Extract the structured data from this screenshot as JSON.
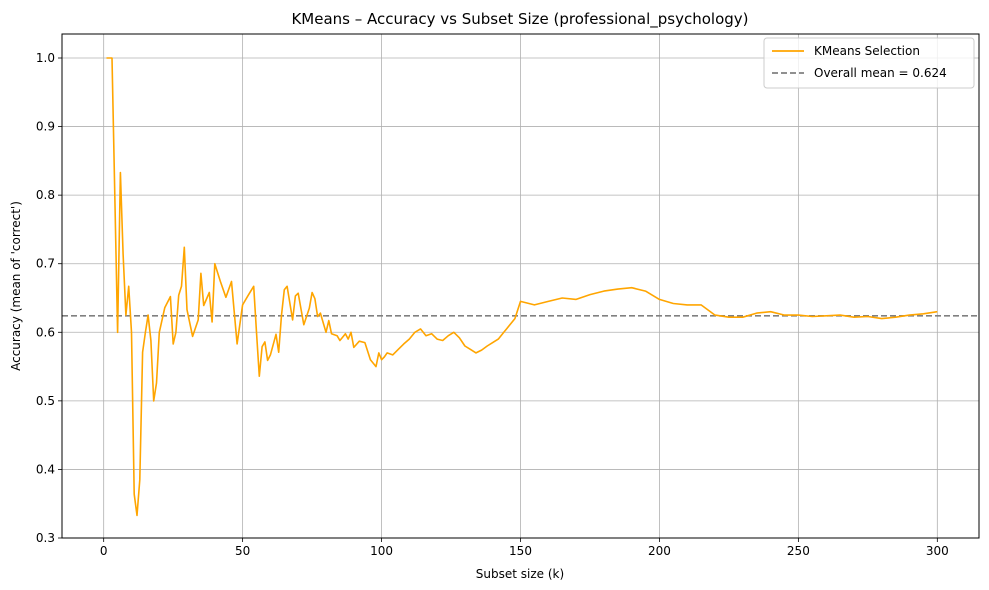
{
  "chart_data": {
    "type": "line",
    "title": "KMeans – Accuracy vs Subset Size (professional_psychology)",
    "xlabel": "Subset size (k)",
    "ylabel": "Accuracy (mean of 'correct')",
    "xlim": [
      -15,
      315
    ],
    "ylim": [
      0.3,
      1.035
    ],
    "xticks": [
      0,
      50,
      100,
      150,
      200,
      250,
      300
    ],
    "yticks": [
      0.3,
      0.4,
      0.5,
      0.6,
      0.7,
      0.8,
      0.9,
      1.0
    ],
    "xtick_labels": [
      "0",
      "50",
      "100",
      "150",
      "200",
      "250",
      "300"
    ],
    "ytick_labels": [
      "0.3",
      "0.4",
      "0.5",
      "0.6",
      "0.7",
      "0.8",
      "0.9",
      "1.0"
    ],
    "grid": true,
    "legend_position": "top-right",
    "series": [
      {
        "name": "KMeans Selection",
        "color": "#ffa500",
        "x": [
          1,
          3,
          5,
          6,
          7,
          8,
          9,
          10,
          11,
          12,
          13,
          14,
          15,
          16,
          17,
          18,
          19,
          20,
          22,
          24,
          25,
          26,
          27,
          28,
          29,
          30,
          32,
          34,
          35,
          36,
          38,
          39,
          40,
          42,
          44,
          46,
          48,
          50,
          52,
          54,
          55,
          56,
          57,
          58,
          59,
          60,
          62,
          63,
          64,
          65,
          66,
          68,
          69,
          70,
          71,
          72,
          74,
          75,
          76,
          77,
          78,
          80,
          81,
          82,
          84,
          85,
          86,
          87,
          88,
          89,
          90,
          92,
          94,
          96,
          98,
          99,
          100,
          101,
          102,
          104,
          106,
          108,
          110,
          112,
          114,
          116,
          118,
          120,
          122,
          124,
          126,
          128,
          130,
          132,
          134,
          136,
          138,
          140,
          142,
          144,
          145,
          146,
          148,
          150,
          155,
          160,
          165,
          170,
          175,
          180,
          185,
          190,
          195,
          200,
          205,
          210,
          215,
          220,
          225,
          230,
          235,
          240,
          245,
          250,
          255,
          260,
          265,
          270,
          275,
          280,
          285,
          290,
          295,
          300
        ],
        "y": [
          1.0,
          1.0,
          0.6,
          0.833,
          0.714,
          0.625,
          0.667,
          0.6,
          0.364,
          0.333,
          0.385,
          0.571,
          0.6,
          0.625,
          0.588,
          0.5,
          0.526,
          0.6,
          0.636,
          0.652,
          0.583,
          0.6,
          0.654,
          0.667,
          0.724,
          0.633,
          0.594,
          0.618,
          0.686,
          0.639,
          0.658,
          0.615,
          0.7,
          0.674,
          0.651,
          0.674,
          0.583,
          0.64,
          0.654,
          0.667,
          0.6,
          0.536,
          0.579,
          0.586,
          0.559,
          0.567,
          0.597,
          0.571,
          0.625,
          0.662,
          0.667,
          0.618,
          0.653,
          0.657,
          0.634,
          0.611,
          0.635,
          0.658,
          0.649,
          0.623,
          0.628,
          0.6,
          0.617,
          0.598,
          0.595,
          0.588,
          0.593,
          0.598,
          0.59,
          0.6,
          0.578,
          0.587,
          0.585,
          0.56,
          0.55,
          0.57,
          0.56,
          0.564,
          0.57,
          0.567,
          0.575,
          0.583,
          0.59,
          0.6,
          0.605,
          0.595,
          0.598,
          0.59,
          0.588,
          0.595,
          0.6,
          0.592,
          0.58,
          0.575,
          0.57,
          0.574,
          0.58,
          0.585,
          0.59,
          0.6,
          0.605,
          0.61,
          0.62,
          0.645,
          0.64,
          0.645,
          0.65,
          0.648,
          0.655,
          0.66,
          0.663,
          0.665,
          0.66,
          0.648,
          0.642,
          0.64,
          0.64,
          0.625,
          0.622,
          0.622,
          0.628,
          0.63,
          0.625,
          0.625,
          0.623,
          0.624,
          0.625,
          0.622,
          0.623,
          0.62,
          0.622,
          0.625,
          0.627,
          0.63
        ]
      }
    ],
    "reference_line": {
      "name": "Overall mean = 0.624",
      "value": 0.624,
      "color": "#808080",
      "style": "dashed"
    }
  }
}
